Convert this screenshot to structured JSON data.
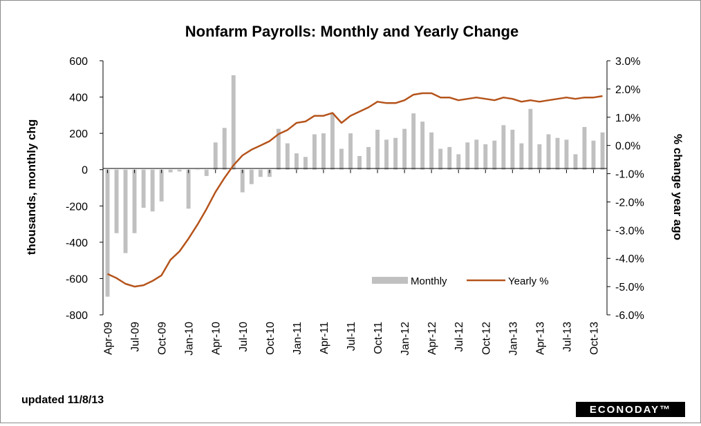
{
  "chart_data": {
    "type": "bar+line",
    "title": "Nonfarm Payrolls: Monthly and Yearly Change",
    "ylabel_left": "thousands, monthly chg",
    "ylabel_right": "% change year ago",
    "ylim_left": [
      -800,
      600
    ],
    "yticks_left": [
      "600",
      "400",
      "200",
      "0",
      "-200",
      "-400",
      "-600",
      "-800"
    ],
    "ylim_right": [
      -6.0,
      3.0
    ],
    "yticks_right": [
      "3.0%",
      "2.0%",
      "1.0%",
      "0.0%",
      "-1.0%",
      "-2.0%",
      "-3.0%",
      "-4.0%",
      "-5.0%",
      "-6.0%"
    ],
    "x_tick_labels": [
      "Apr-09",
      "Jul-09",
      "Oct-09",
      "Jan-10",
      "Apr-10",
      "Jul-10",
      "Oct-10",
      "Jan-11",
      "Apr-11",
      "Jul-11",
      "Oct-11",
      "Jan-12",
      "Apr-12",
      "Jul-12",
      "Oct-12",
      "Jan-13",
      "Apr-13",
      "Jul-13",
      "Oct-13"
    ],
    "legend_position": "bottom-right",
    "series": [
      {
        "name": "Monthly",
        "kind": "bar",
        "color": "#c0c0c0",
        "values": [
          -700,
          -350,
          -460,
          -350,
          -210,
          -230,
          -175,
          -15,
          -10,
          -215,
          0,
          -35,
          150,
          230,
          520,
          -125,
          -80,
          -40,
          -40,
          225,
          145,
          90,
          70,
          195,
          200,
          310,
          115,
          200,
          75,
          125,
          220,
          165,
          175,
          225,
          310,
          265,
          205,
          115,
          125,
          85,
          150,
          165,
          140,
          160,
          245,
          220,
          145,
          335,
          140,
          195,
          175,
          165,
          85,
          235,
          160,
          205
        ]
      },
      {
        "name": "Yearly %",
        "kind": "line",
        "color": "#b5531a",
        "values": [
          -4.55,
          -4.7,
          -4.9,
          -5.0,
          -4.95,
          -4.8,
          -4.6,
          -4.05,
          -3.75,
          -3.3,
          -2.8,
          -2.25,
          -1.65,
          -1.15,
          -0.7,
          -0.35,
          -0.15,
          0.0,
          0.15,
          0.4,
          0.55,
          0.8,
          0.85,
          1.05,
          1.05,
          1.15,
          0.8,
          1.05,
          1.2,
          1.35,
          1.55,
          1.5,
          1.5,
          1.6,
          1.8,
          1.85,
          1.85,
          1.7,
          1.7,
          1.6,
          1.65,
          1.7,
          1.65,
          1.6,
          1.7,
          1.65,
          1.55,
          1.6,
          1.55,
          1.6,
          1.65,
          1.7,
          1.65,
          1.7,
          1.7,
          1.75
        ]
      }
    ]
  },
  "footer": {
    "updated": "updated 11/8/13",
    "logo": "ECONODAY™"
  }
}
